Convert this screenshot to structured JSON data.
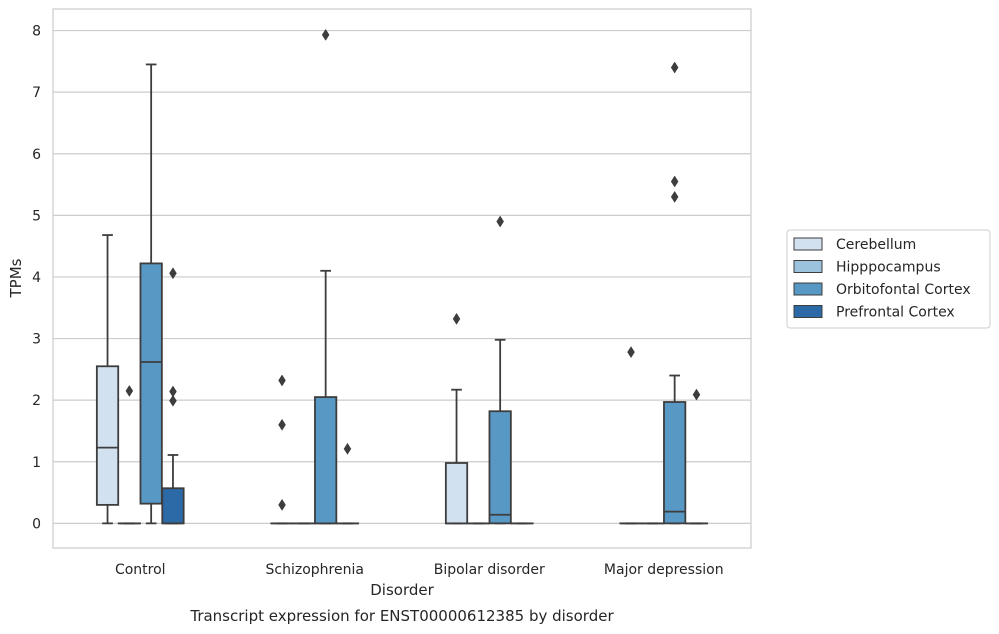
{
  "chart_data": {
    "type": "boxplot",
    "xlabel": "Disorder",
    "ylabel": "TPMs",
    "caption": "Transcript expression for ENST00000612385 by disorder",
    "categories": [
      "Control",
      "Schizophrenia",
      "Bipolar disorder",
      "Major depression"
    ],
    "ylim": [
      -0.4,
      8.35
    ],
    "yticks": [
      0,
      1,
      2,
      3,
      4,
      5,
      6,
      7,
      8
    ],
    "grid": "horizontal",
    "legend_position": "right",
    "series": [
      {
        "name": "Cerebellum",
        "color": "#d2e1f0",
        "boxes": [
          {
            "q1": 0.3,
            "median": 1.23,
            "q3": 2.55,
            "whisker_low": 0,
            "whisker_high": 4.68,
            "outliers": []
          },
          {
            "q1": 0,
            "median": 0,
            "q3": 0,
            "whisker_low": 0,
            "whisker_high": 0,
            "outliers": [
              0.3,
              1.6,
              2.32
            ]
          },
          {
            "q1": 0,
            "median": 0,
            "q3": 0.98,
            "whisker_low": 0,
            "whisker_high": 2.17,
            "outliers": [
              3.32
            ]
          },
          {
            "q1": 0,
            "median": 0,
            "q3": 0,
            "whisker_low": 0,
            "whisker_high": 0,
            "outliers": [
              2.78
            ]
          }
        ]
      },
      {
        "name": "Hipppocampus",
        "color": "#9cc3dd",
        "boxes": [
          {
            "q1": 0,
            "median": 0,
            "q3": 0,
            "whisker_low": 0,
            "whisker_high": 0,
            "outliers": [
              2.15
            ]
          },
          {
            "q1": 0,
            "median": 0,
            "q3": 0,
            "whisker_low": 0,
            "whisker_high": 0,
            "outliers": []
          },
          {
            "q1": 0,
            "median": 0,
            "q3": 0,
            "whisker_low": 0,
            "whisker_high": 0,
            "outliers": []
          },
          {
            "q1": 0,
            "median": 0,
            "q3": 0,
            "whisker_low": 0,
            "whisker_high": 0,
            "outliers": []
          }
        ]
      },
      {
        "name": "Orbitofontal Cortex",
        "color": "#5898c4",
        "boxes": [
          {
            "q1": 0.32,
            "median": 2.62,
            "q3": 4.22,
            "whisker_low": 0,
            "whisker_high": 7.45,
            "outliers": []
          },
          {
            "q1": 0,
            "median": 0,
            "q3": 2.05,
            "whisker_low": 0,
            "whisker_high": 4.1,
            "outliers": [
              7.93
            ]
          },
          {
            "q1": 0,
            "median": 0.14,
            "q3": 1.82,
            "whisker_low": 0,
            "whisker_high": 2.98,
            "outliers": [
              4.9
            ]
          },
          {
            "q1": 0,
            "median": 0.19,
            "q3": 1.97,
            "whisker_low": 0,
            "whisker_high": 2.4,
            "outliers": [
              5.3,
              5.55,
              7.4
            ]
          }
        ]
      },
      {
        "name": "Prefrontal Cortex",
        "color": "#2b69a7",
        "boxes": [
          {
            "q1": 0,
            "median": 0,
            "q3": 0.57,
            "whisker_low": 0,
            "whisker_high": 1.11,
            "outliers": [
              1.99,
              2.14,
              4.06
            ]
          },
          {
            "q1": 0,
            "median": 0,
            "q3": 0,
            "whisker_low": 0,
            "whisker_high": 0,
            "outliers": [
              1.21
            ]
          },
          {
            "q1": 0,
            "median": 0,
            "q3": 0,
            "whisker_low": 0,
            "whisker_high": 0,
            "outliers": []
          },
          {
            "q1": 0,
            "median": 0,
            "q3": 0,
            "whisker_low": 0,
            "whisker_high": 0,
            "outliers": [
              2.09
            ]
          }
        ]
      }
    ]
  }
}
